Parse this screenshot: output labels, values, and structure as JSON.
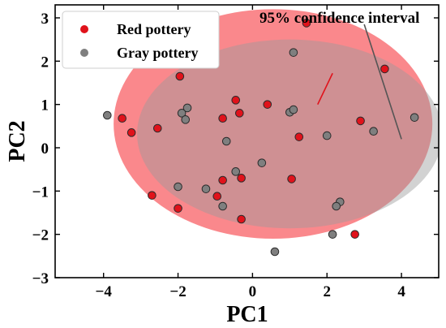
{
  "chart_data": {
    "type": "scatter",
    "xlabel": "PC1",
    "ylabel": "PC2",
    "xlim": [
      -5.3,
      5.0
    ],
    "ylim": [
      -3.0,
      3.3
    ],
    "xticks": [
      -4,
      -2,
      0,
      2,
      4
    ],
    "yticks": [
      -3,
      -2,
      -1,
      0,
      1,
      2,
      3
    ],
    "grid": false,
    "legend_placement": "top-left",
    "series": [
      {
        "name": "Red pottery",
        "color": "#e0121b",
        "x": [
          -1.95,
          -3.5,
          -3.25,
          -2.55,
          -0.45,
          -0.35,
          0.4,
          -0.8,
          1.25,
          2.9,
          1.05,
          -2.7,
          -2.0,
          -0.95,
          -0.8,
          -0.3,
          -0.3,
          2.75,
          1.45,
          3.55
        ],
        "y": [
          1.65,
          0.68,
          0.35,
          0.45,
          1.1,
          0.8,
          1.0,
          0.68,
          0.25,
          0.62,
          -0.72,
          -1.1,
          -1.4,
          -1.12,
          -0.75,
          -0.7,
          -1.65,
          -2.0,
          2.88,
          1.82
        ]
      },
      {
        "name": "Gray pottery",
        "color": "#7f7f7f",
        "x": [
          -3.9,
          -1.75,
          -1.9,
          -1.8,
          1.1,
          1.0,
          1.1,
          2.0,
          3.25,
          4.35,
          -0.7,
          0.25,
          -0.45,
          -1.25,
          -2.0,
          -0.8,
          2.35,
          2.25,
          2.15,
          0.6
        ],
        "y": [
          0.75,
          0.92,
          0.8,
          0.65,
          2.2,
          0.82,
          0.88,
          0.28,
          0.38,
          0.7,
          0.15,
          -0.35,
          -0.55,
          -0.95,
          -0.9,
          -1.35,
          -1.25,
          -1.35,
          -2.0,
          -2.4
        ]
      }
    ],
    "ellipses": [
      {
        "series": "Red pottery",
        "color": "#f7484e",
        "center": [
          0.55,
          0.55
        ],
        "radius_x": 4.28,
        "radius_y": 2.65,
        "opacity": 0.65
      },
      {
        "series": "Gray pottery",
        "color": "#9c9c9c",
        "center": [
          1.0,
          0.32
        ],
        "radius_x": 4.1,
        "radius_y": 2.18,
        "opacity": 0.45
      }
    ],
    "annotation": {
      "text": "95% confidence interval",
      "red_pointer": {
        "from": [
          1.75,
          1.0
        ],
        "to": [
          2.15,
          1.72
        ]
      },
      "gray_pointer": {
        "from": [
          3.0,
          2.85
        ],
        "to": [
          4.0,
          0.2
        ]
      }
    }
  }
}
